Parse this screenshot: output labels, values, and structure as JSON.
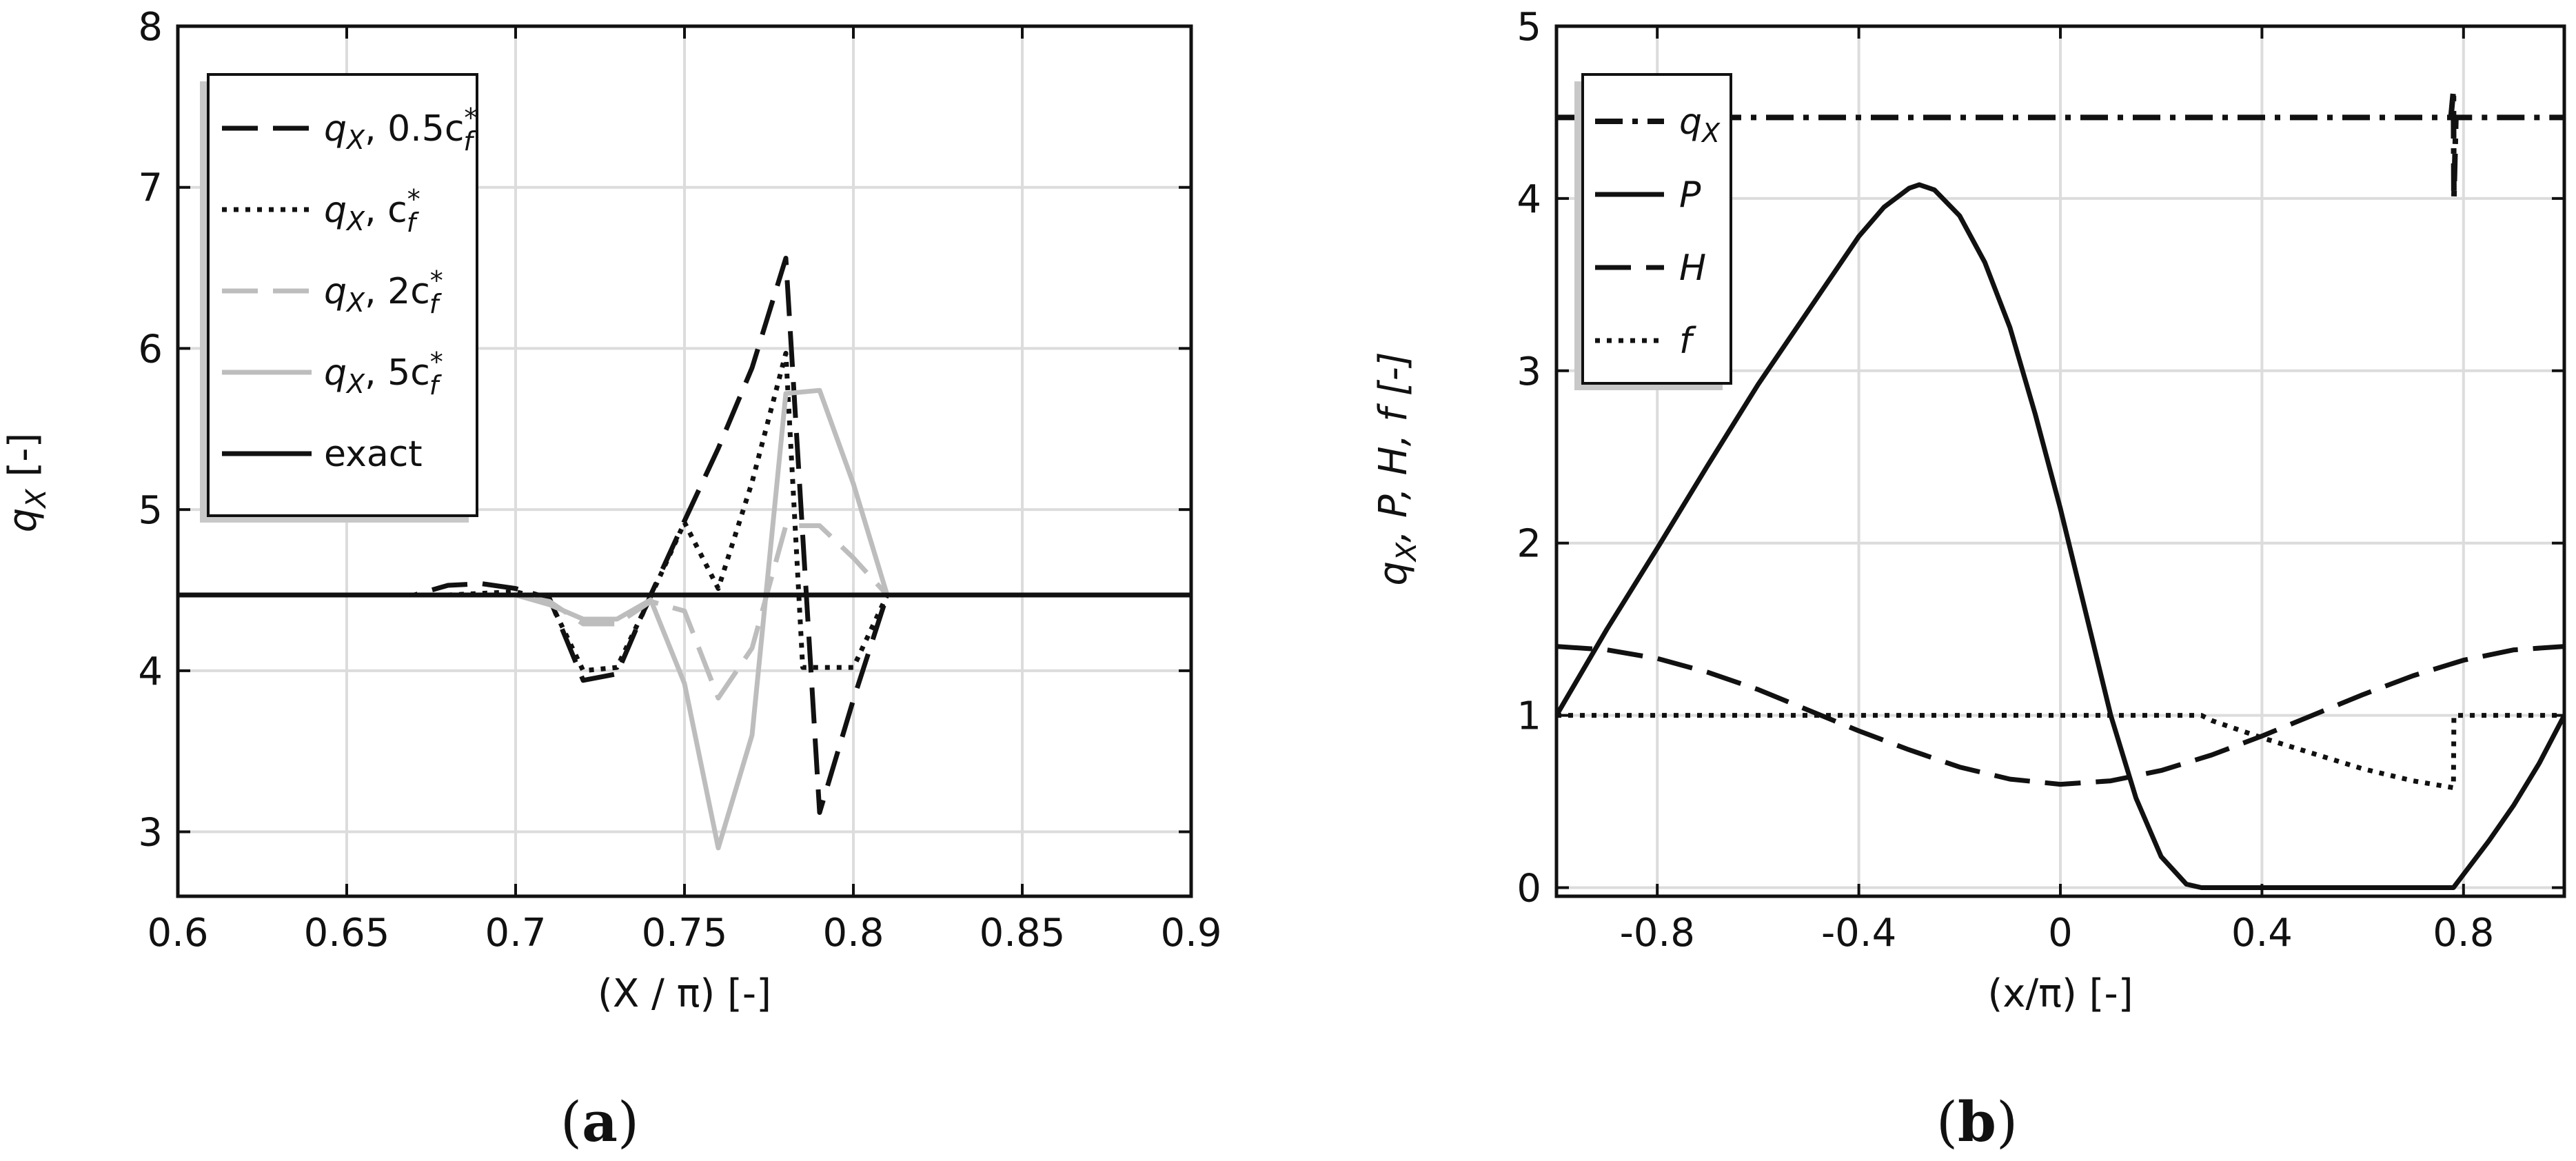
{
  "panels": [
    {
      "id": "a",
      "panel_label_prefix": "(",
      "panel_label_letter": "a",
      "panel_label_suffix": ")",
      "ylabel_main": "q",
      "ylabel_sub": "X",
      "ylabel_rest": " [-]",
      "xlabel": "(X / π)  [-]",
      "legend_title": ""
    },
    {
      "id": "b",
      "panel_label_prefix": "(",
      "panel_label_letter": "b",
      "panel_label_suffix": ")",
      "ylabel_main": "q",
      "ylabel_sub": "X",
      "ylabel_rest": ", P, H, f [-]",
      "xlabel": "(x/π) [-]"
    }
  ],
  "chart_data": [
    {
      "type": "line",
      "panel": "a",
      "xlabel": "(X / π)  [-]",
      "ylabel": "qX [-]",
      "xlim": [
        0.6,
        0.9
      ],
      "ylim": [
        2.6,
        8.0
      ],
      "x_ticks": [
        "0.6",
        "0.65",
        "0.7",
        "0.75",
        "0.8",
        "0.85",
        "0.9"
      ],
      "x_tick_values": [
        0.6,
        0.65,
        0.7,
        0.75,
        0.8,
        0.85,
        0.9
      ],
      "y_ticks": [
        "3",
        "4",
        "5",
        "6",
        "7",
        "8"
      ],
      "y_tick_values": [
        3,
        4,
        5,
        6,
        7,
        8
      ],
      "grid": true,
      "legend_placement": "top-left",
      "series": [
        {
          "name": "qX, 0.5cf*",
          "legend_main": "q",
          "legend_sub": "X",
          "legend_text": ", 0.5c",
          "legend_sub2": "f",
          "legend_sup": "*",
          "style": "dashed",
          "color": "#111111",
          "x": [
            0.6,
            0.67,
            0.68,
            0.69,
            0.7,
            0.71,
            0.72,
            0.73,
            0.74,
            0.75,
            0.76,
            0.77,
            0.78,
            0.79,
            0.8,
            0.81,
            0.82,
            0.9
          ],
          "y": [
            4.47,
            4.47,
            4.53,
            4.54,
            4.51,
            4.45,
            3.94,
            3.98,
            4.47,
            4.93,
            5.38,
            5.88,
            6.56,
            3.12,
            3.82,
            4.47,
            4.47,
            4.47
          ]
        },
        {
          "name": "qX, cf*",
          "legend_main": "q",
          "legend_sub": "X",
          "legend_text": ", c",
          "legend_sub2": "f",
          "legend_sup": "*",
          "style": "dotted",
          "color": "#111111",
          "x": [
            0.6,
            0.68,
            0.7,
            0.71,
            0.72,
            0.73,
            0.74,
            0.75,
            0.76,
            0.77,
            0.78,
            0.785,
            0.79,
            0.8,
            0.81,
            0.9
          ],
          "y": [
            4.47,
            4.47,
            4.49,
            4.44,
            4.0,
            4.02,
            4.46,
            4.92,
            4.51,
            5.17,
            5.97,
            4.02,
            4.02,
            4.02,
            4.47,
            4.47
          ]
        },
        {
          "name": "qX, 2cf*",
          "legend_main": "q",
          "legend_sub": "X",
          "legend_text": ", 2c",
          "legend_sub2": "f",
          "legend_sup": "*",
          "style": "dashed",
          "color": "#bdbdbd",
          "x": [
            0.6,
            0.7,
            0.71,
            0.72,
            0.73,
            0.74,
            0.75,
            0.76,
            0.77,
            0.78,
            0.79,
            0.8,
            0.81,
            0.9
          ],
          "y": [
            4.47,
            4.47,
            4.43,
            4.29,
            4.29,
            4.43,
            4.37,
            3.83,
            4.14,
            4.9,
            4.9,
            4.7,
            4.47,
            4.47
          ]
        },
        {
          "name": "qX, 5cf*",
          "legend_main": "q",
          "legend_sub": "X",
          "legend_text": ", 5c",
          "legend_sub2": "f",
          "legend_sup": "*",
          "style": "solid",
          "color": "#bdbdbd",
          "x": [
            0.6,
            0.7,
            0.71,
            0.72,
            0.73,
            0.74,
            0.75,
            0.76,
            0.77,
            0.78,
            0.79,
            0.8,
            0.81,
            0.9
          ],
          "y": [
            4.47,
            4.47,
            4.41,
            4.32,
            4.32,
            4.44,
            3.92,
            2.9,
            3.6,
            5.72,
            5.74,
            5.16,
            4.47,
            4.47
          ]
        },
        {
          "name": "exact",
          "legend_main": "exact",
          "style": "solid",
          "color": "#111111",
          "x": [
            0.6,
            0.9
          ],
          "y": [
            4.47,
            4.47
          ]
        }
      ]
    },
    {
      "type": "line",
      "panel": "b",
      "xlabel": "(x/π) [-]",
      "ylabel": "qX, P, H, f [-]",
      "xlim": [
        -1.0,
        1.0
      ],
      "ylim": [
        -0.05,
        5.0
      ],
      "x_ticks": [
        "-0.8",
        "-0.4",
        "0",
        "0.4",
        "0.8"
      ],
      "x_tick_values": [
        -0.8,
        -0.4,
        0,
        0.4,
        0.8
      ],
      "y_ticks": [
        "0",
        "1",
        "2",
        "3",
        "4",
        "5"
      ],
      "y_tick_values": [
        0,
        1,
        2,
        3,
        4,
        5
      ],
      "grid": true,
      "legend_placement": "top-left",
      "series": [
        {
          "name": "qX",
          "legend_main": "q",
          "legend_sub": "X",
          "style": "dashdot",
          "color": "#111111",
          "x": [
            -1.0,
            0.775,
            0.78,
            0.781,
            0.785,
            0.79,
            1.0
          ],
          "y": [
            4.47,
            4.47,
            4.63,
            4.0,
            4.47,
            4.47,
            4.47
          ]
        },
        {
          "name": "P",
          "legend_main": "P",
          "style": "solid",
          "color": "#111111",
          "x": [
            -1.0,
            -0.9,
            -0.8,
            -0.7,
            -0.6,
            -0.5,
            -0.4,
            -0.35,
            -0.3,
            -0.28,
            -0.25,
            -0.2,
            -0.15,
            -0.1,
            -0.05,
            0.0,
            0.05,
            0.1,
            0.15,
            0.2,
            0.25,
            0.28,
            0.4,
            0.6,
            0.78,
            0.85,
            0.9,
            0.95,
            1.0
          ],
          "y": [
            1.0,
            1.5,
            1.97,
            2.45,
            2.92,
            3.35,
            3.78,
            3.95,
            4.06,
            4.08,
            4.05,
            3.9,
            3.63,
            3.25,
            2.75,
            2.2,
            1.6,
            1.0,
            0.52,
            0.18,
            0.02,
            0.0,
            0.0,
            0.0,
            0.0,
            0.27,
            0.48,
            0.72,
            1.0
          ]
        },
        {
          "name": "H",
          "legend_main": "H",
          "style": "dashed",
          "color": "#111111",
          "x": [
            -1.0,
            -0.9,
            -0.8,
            -0.7,
            -0.6,
            -0.5,
            -0.4,
            -0.3,
            -0.2,
            -0.1,
            0.0,
            0.1,
            0.2,
            0.3,
            0.4,
            0.5,
            0.6,
            0.7,
            0.8,
            0.9,
            1.0
          ],
          "y": [
            1.4,
            1.38,
            1.33,
            1.25,
            1.15,
            1.03,
            0.91,
            0.8,
            0.7,
            0.63,
            0.6,
            0.62,
            0.68,
            0.77,
            0.88,
            1.0,
            1.12,
            1.23,
            1.32,
            1.38,
            1.4
          ]
        },
        {
          "name": "f",
          "legend_main": "f",
          "style": "dotted",
          "color": "#111111",
          "x": [
            -1.0,
            0.28,
            0.3,
            0.4,
            0.5,
            0.6,
            0.7,
            0.78,
            0.781,
            1.0
          ],
          "y": [
            1.0,
            1.0,
            0.97,
            0.87,
            0.78,
            0.69,
            0.62,
            0.58,
            1.0,
            1.0
          ]
        }
      ]
    }
  ]
}
